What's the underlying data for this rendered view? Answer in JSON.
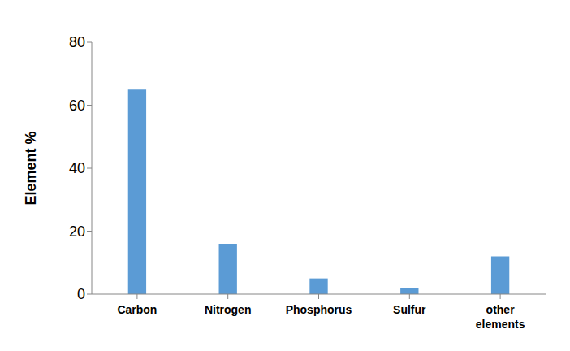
{
  "chart_data": {
    "type": "bar",
    "y_label": "Element %",
    "categories": [
      "Carbon",
      "Nitrogen",
      "Phosphorus",
      "Sulfur",
      "other elements"
    ],
    "values": [
      65,
      16,
      5,
      2,
      12
    ],
    "color": "#5b9bd5",
    "ylim": [
      0,
      80
    ],
    "yticks": [
      0,
      20,
      40,
      60,
      80
    ],
    "grid": false
  }
}
